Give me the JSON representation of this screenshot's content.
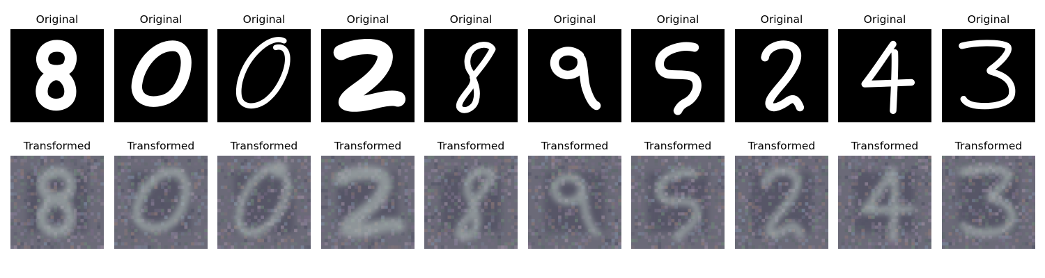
{
  "figure": {
    "rows": [
      {
        "kind": "original",
        "panels": [
          {
            "title": "Original",
            "digit": "8"
          },
          {
            "title": "Original",
            "digit": "0"
          },
          {
            "title": "Original",
            "digit": "0"
          },
          {
            "title": "Original",
            "digit": "2"
          },
          {
            "title": "Original",
            "digit": "8"
          },
          {
            "title": "Original",
            "digit": "9"
          },
          {
            "title": "Original",
            "digit": "5"
          },
          {
            "title": "Original",
            "digit": "2"
          },
          {
            "title": "Original",
            "digit": "4"
          },
          {
            "title": "Original",
            "digit": "3"
          }
        ]
      },
      {
        "kind": "transformed",
        "panels": [
          {
            "title": "Transformed",
            "digit": "8"
          },
          {
            "title": "Transformed",
            "digit": "0"
          },
          {
            "title": "Transformed",
            "digit": "0"
          },
          {
            "title": "Transformed",
            "digit": "2"
          },
          {
            "title": "Transformed",
            "digit": "8"
          },
          {
            "title": "Transformed",
            "digit": "9"
          },
          {
            "title": "Transformed",
            "digit": "5"
          },
          {
            "title": "Transformed",
            "digit": "2"
          },
          {
            "title": "Transformed",
            "digit": "4"
          },
          {
            "title": "Transformed",
            "digit": "3"
          }
        ]
      }
    ],
    "colors": {
      "original_background": "#000000",
      "original_stroke": "#ffffff",
      "transformed_background": "#6b6a78",
      "transformed_stroke": "#a6b0ae"
    }
  }
}
